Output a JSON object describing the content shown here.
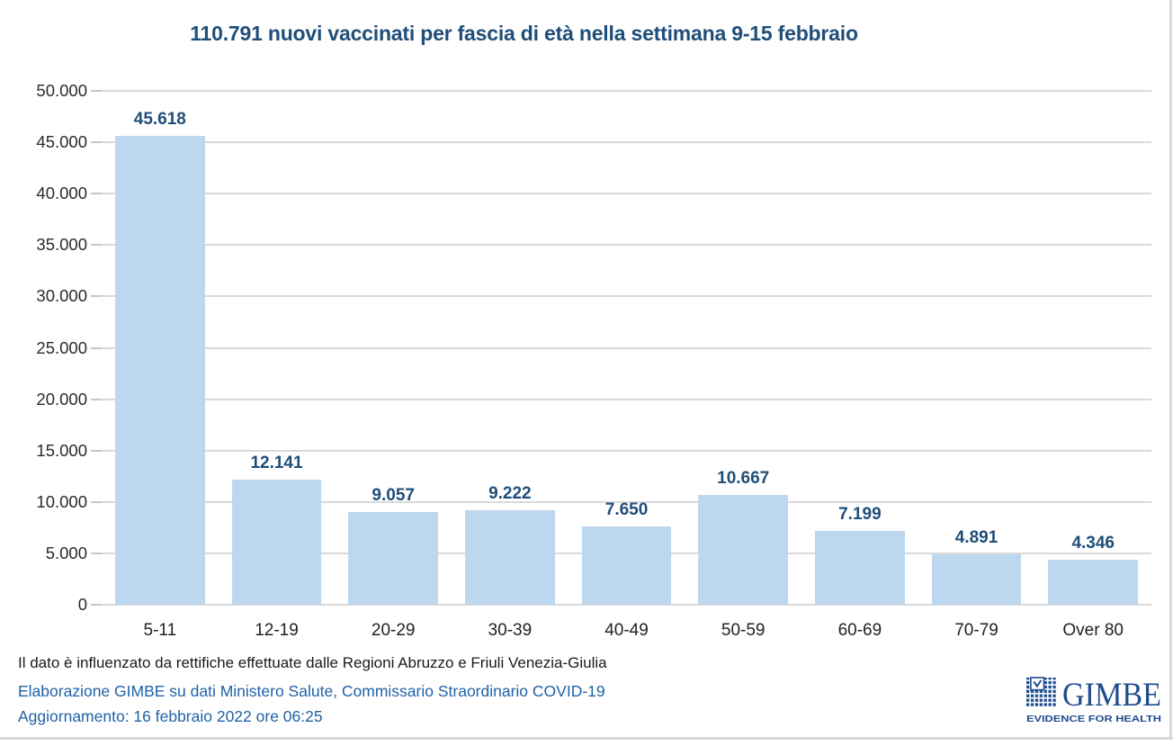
{
  "chart_data": {
    "type": "bar",
    "title": "110.791 nuovi vaccinati per fascia di età nella settimana 9-15 febbraio",
    "categories": [
      "5-11",
      "12-19",
      "20-29",
      "30-39",
      "40-49",
      "50-59",
      "60-69",
      "70-79",
      "Over 80"
    ],
    "values": [
      45618,
      12141,
      9057,
      9222,
      7650,
      10667,
      7199,
      4891,
      4346
    ],
    "value_labels": [
      "45.618",
      "12.141",
      "9.057",
      "9.222",
      "7.650",
      "10.667",
      "7.199",
      "4.891",
      "4.346"
    ],
    "xlabel": "",
    "ylabel": "",
    "ylim": [
      0,
      50000
    ],
    "ytick_step": 5000,
    "ytick_labels": [
      "50.000",
      "45.000",
      "40.000",
      "35.000",
      "30.000",
      "25.000",
      "20.000",
      "15.000",
      "10.000",
      "5.000",
      "0"
    ],
    "grid": true,
    "legend": false,
    "bar_color": "#BDD7EE",
    "value_label_color": "#1F4E79",
    "title_color": "#1F4E79",
    "gridline_color": "#D9D9D9"
  },
  "footnotes": {
    "note": "Il dato è influenzato da rettifiche effettuate dalle Regioni Abruzzo e Friuli Venezia-Giulia",
    "source": "Elaborazione GIMBE su dati Ministero Salute, Commissario Straordinario COVID-19",
    "updated": "Aggiornamento: 16 febbraio 2022 ore 06:25"
  },
  "logo": {
    "wordmark": "GIMBE",
    "tagline": "EVIDENCE FOR HEALTH",
    "color": "#1E4C8F"
  }
}
